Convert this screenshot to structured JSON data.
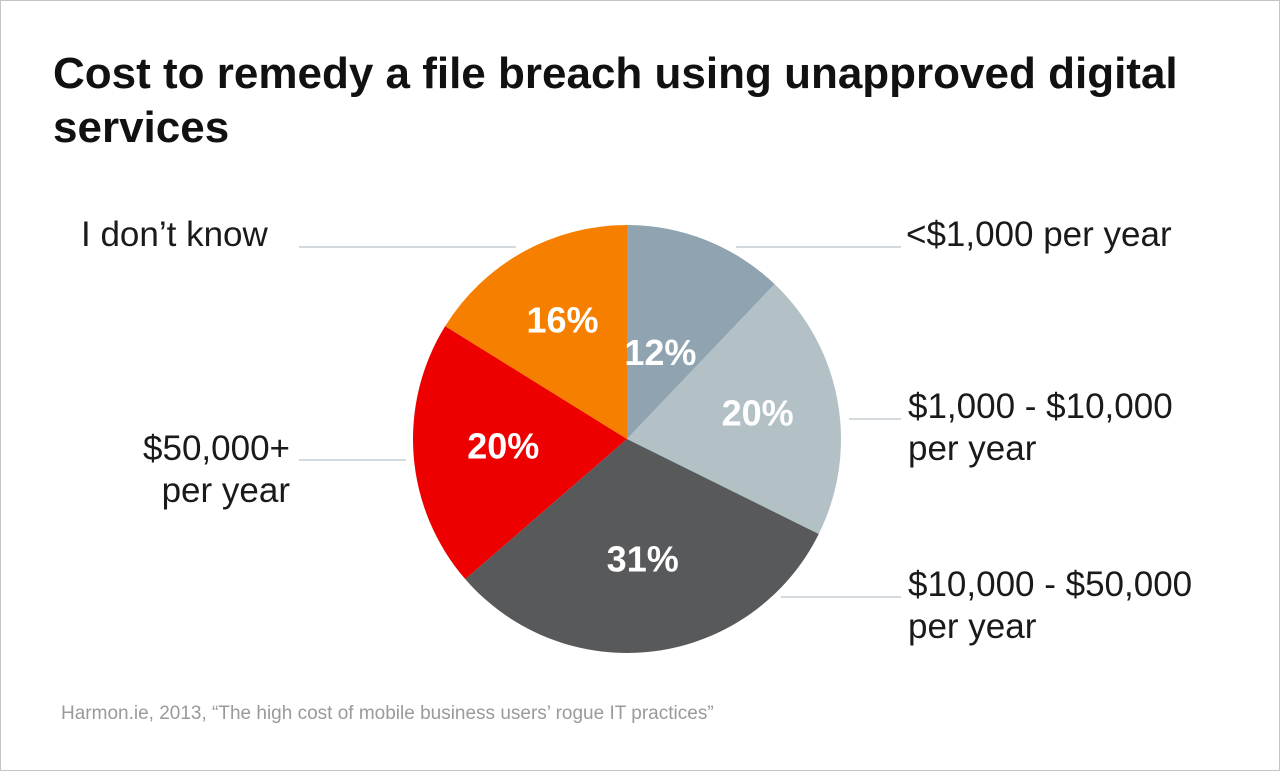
{
  "chart_data": {
    "type": "pie",
    "title": "Cost to remedy a file breach using unapproved digital services",
    "slices": [
      {
        "label": "<$1,000 per year",
        "value": 12,
        "display": "12%",
        "color": "#8fa4b0"
      },
      {
        "label": "$1,000 - $10,000 per year",
        "value": 20,
        "display": "20%",
        "color": "#b3c1c6"
      },
      {
        "label": "$10,000 - $50,000 per year",
        "value": 31,
        "display": "31%",
        "color": "#58595b"
      },
      {
        "label": "$50,000+ per year",
        "value": 20,
        "display": "20%",
        "color": "#ee0000"
      },
      {
        "label": "I don’t know",
        "value": 16,
        "display": "16%",
        "color": "#f77f00"
      }
    ],
    "source": "Harmon.ie, 2013, “The high cost of mobile business users’ rogue IT practices”"
  },
  "labels": {
    "lt1000": "<$1,000 per year",
    "r1000_line1": "$1,000 - $10,000",
    "r1000_line2": "per year",
    "r10000_line1": "$10,000 - $50,000",
    "r10000_line2": "per year",
    "r50000_line1": "$50,000+",
    "r50000_line2": "per year",
    "unknown": "I don’t know"
  }
}
